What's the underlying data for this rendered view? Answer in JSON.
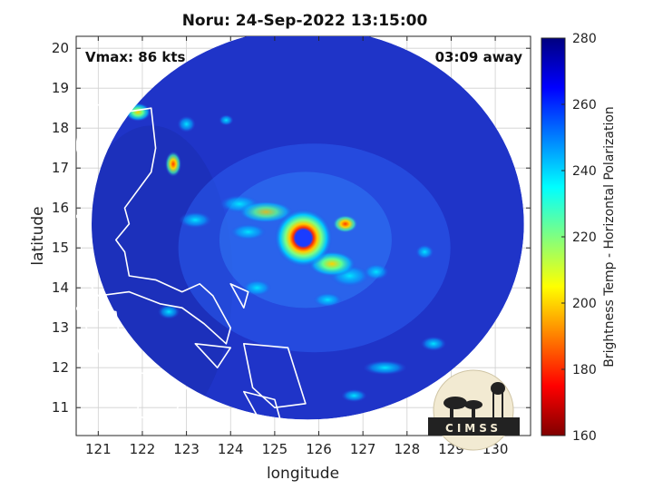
{
  "chart_data": {
    "type": "heatmap",
    "title": "Noru: 24-Sep-2022 13:15:00",
    "xlabel": "longitude",
    "ylabel": "latitude",
    "xlim": [
      120.5,
      130.8
    ],
    "ylim": [
      10.3,
      20.3
    ],
    "xticks": [
      "121",
      "122",
      "123",
      "124",
      "125",
      "126",
      "127",
      "128",
      "129",
      "130"
    ],
    "xtick_values": [
      121,
      122,
      123,
      124,
      125,
      126,
      127,
      128,
      129,
      130
    ],
    "yticks": [
      "11",
      "12",
      "13",
      "14",
      "15",
      "16",
      "17",
      "18",
      "19",
      "20"
    ],
    "ytick_values": [
      11,
      12,
      13,
      14,
      15,
      16,
      17,
      18,
      19,
      20
    ],
    "grid": true,
    "annotations": {
      "vmax": "Vmax: 86 kts",
      "away": "03:09 away"
    },
    "storm_center": {
      "lon": 125.65,
      "lat": 15.25
    },
    "swath": {
      "center_lon": 125.75,
      "center_lat": 15.6,
      "radius_deg": 4.9
    },
    "colorbar": {
      "label": "Brightness Temp - Horizontal Polarization",
      "range": [
        160,
        280
      ],
      "ticks": [
        "160",
        "180",
        "200",
        "220",
        "240",
        "260",
        "280"
      ],
      "tick_values": [
        160,
        180,
        200,
        220,
        240,
        260,
        280
      ],
      "colormap": "jet"
    },
    "logo_text": "CIMSS",
    "features": [
      {
        "name": "eye",
        "lon": 125.65,
        "lat": 15.25,
        "tb": 262
      },
      {
        "name": "eyewall-ring",
        "lon": 125.65,
        "lat": 15.25,
        "tb": 195
      },
      {
        "name": "outer-band-east",
        "lon": 126.6,
        "lat": 15.6,
        "tb": 200
      },
      {
        "name": "band-north-luzon",
        "lon": 122.7,
        "lat": 17.1,
        "tb": 200
      },
      {
        "name": "band-northwest",
        "lon": 121.9,
        "lat": 18.4,
        "tb": 225
      }
    ],
    "colors": {
      "background_cold": "#1f34c8",
      "inner_eye": "#2233dd"
    }
  }
}
